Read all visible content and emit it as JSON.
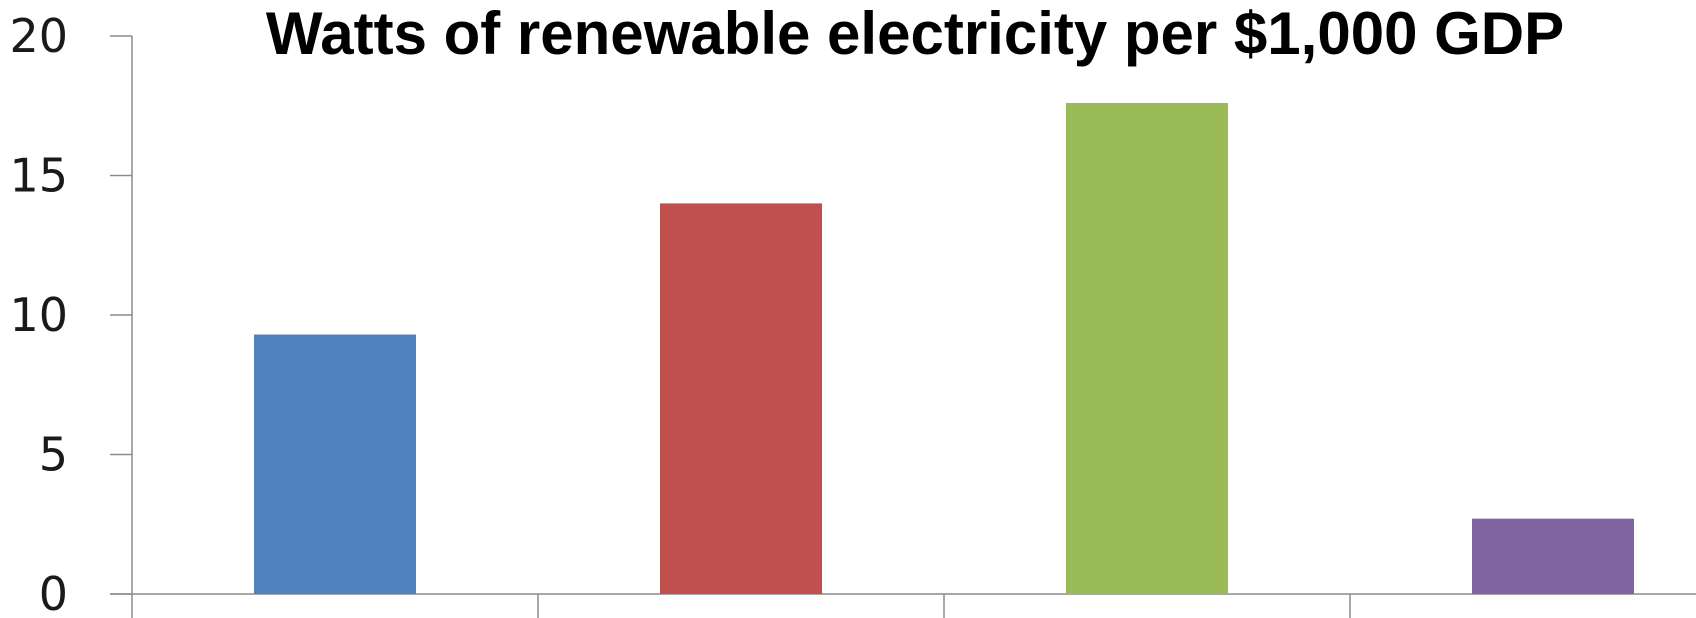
{
  "chart_data": {
    "type": "bar",
    "title": "Watts of renewable electricity per $1,000 GDP",
    "categories": [
      "",
      "",
      "",
      ""
    ],
    "values": [
      9.3,
      14.0,
      17.6,
      2.7
    ],
    "colors": [
      "#4f81bd",
      "#c0504d",
      "#9bbb59",
      "#8064a2"
    ],
    "ylim": [
      0,
      20
    ],
    "yticks": [
      0,
      5,
      10,
      15,
      20
    ],
    "ytick_labels": [
      "0",
      "5",
      "10",
      "15",
      "20"
    ],
    "grid": false,
    "legend": "none"
  }
}
